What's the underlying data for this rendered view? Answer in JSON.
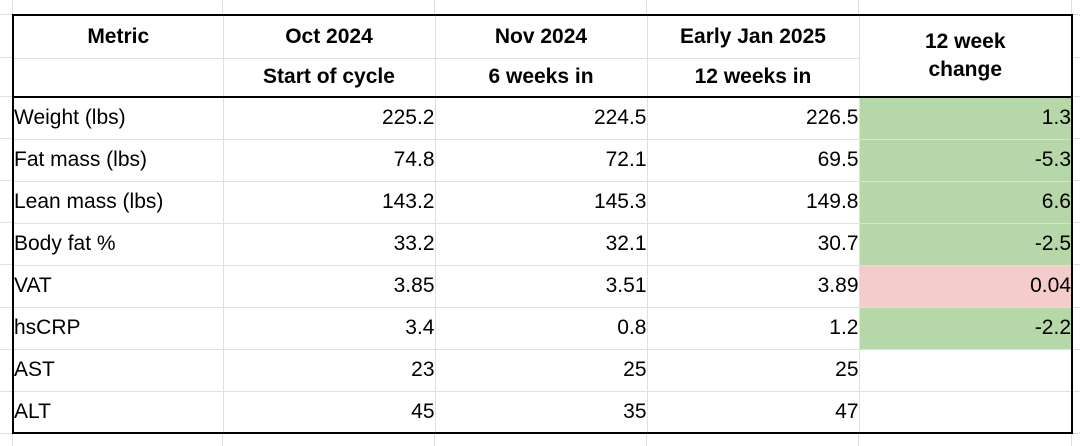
{
  "colors": {
    "improvement_highlight": "#b6d7a8",
    "regression_highlight": "#f4cccc"
  },
  "chart_data": {
    "type": "table",
    "header": {
      "metric_label": "Metric",
      "periods": [
        {
          "label": "Oct 2024",
          "sublabel": "Start of cycle"
        },
        {
          "label": "Nov 2024",
          "sublabel": "6 weeks in"
        },
        {
          "label": "Early Jan 2025",
          "sublabel": "12 weeks in"
        }
      ],
      "change_label": "12 week change"
    },
    "rows": [
      {
        "metric": "Weight (lbs)",
        "values": [
          "225.2",
          "224.5",
          "226.5"
        ],
        "change": "1.3",
        "change_highlight": "green"
      },
      {
        "metric": "Fat mass (lbs)",
        "values": [
          "74.8",
          "72.1",
          "69.5"
        ],
        "change": "-5.3",
        "change_highlight": "green"
      },
      {
        "metric": "Lean mass (lbs)",
        "values": [
          "143.2",
          "145.3",
          "149.8"
        ],
        "change": "6.6",
        "change_highlight": "green"
      },
      {
        "metric": "Body fat %",
        "values": [
          "33.2",
          "32.1",
          "30.7"
        ],
        "change": "-2.5",
        "change_highlight": "green"
      },
      {
        "metric": "VAT",
        "values": [
          "3.85",
          "3.51",
          "3.89"
        ],
        "change": "0.04",
        "change_highlight": "red"
      },
      {
        "metric": "hsCRP",
        "values": [
          "3.4",
          "0.8",
          "1.2"
        ],
        "change": "-2.2",
        "change_highlight": "green"
      },
      {
        "metric": "AST",
        "values": [
          "23",
          "25",
          "25"
        ],
        "change": "",
        "change_highlight": "none"
      },
      {
        "metric": "ALT",
        "values": [
          "45",
          "35",
          "47"
        ],
        "change": "",
        "change_highlight": "none"
      }
    ]
  }
}
